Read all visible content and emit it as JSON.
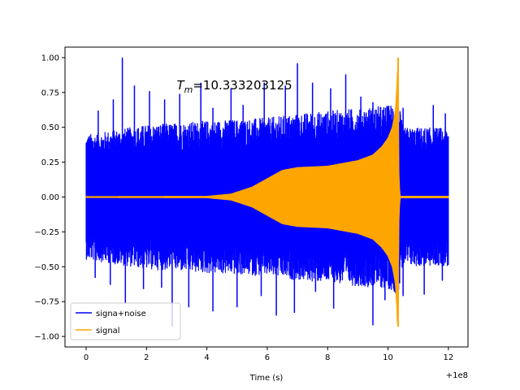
{
  "chart_data": {
    "type": "line",
    "title": "",
    "xlabel": "Time (s)",
    "ylabel": "",
    "x_offset_label": "+1e8",
    "xlim": [
      -0.7,
      12.65
    ],
    "ylim": [
      -1.075,
      1.075
    ],
    "x_ticks": [
      0,
      2,
      4,
      6,
      8,
      10,
      12
    ],
    "x_tick_labels": [
      "0",
      "2",
      "4",
      "6",
      "8",
      "10",
      "12"
    ],
    "y_ticks": [
      1.0,
      0.75,
      0.5,
      0.25,
      0.0,
      -0.25,
      -0.5,
      -0.75,
      -1.0
    ],
    "y_tick_labels": [
      "1.00",
      "0.75",
      "0.50",
      "0.25",
      "0.00",
      "−0.25",
      "−0.50",
      "−0.75",
      "−1.00"
    ],
    "grid": false,
    "legend_position": "lower-left",
    "annotation": {
      "symbol": "T",
      "subscript": "m",
      "value_text": "=10.333203125",
      "x": 3.0,
      "y": 0.8
    },
    "series": [
      {
        "name": "signa+noise",
        "color": "#0000ff",
        "x_range": [
          0,
          12.0
        ],
        "band_upper": [
          [
            0.0,
            0.45
          ],
          [
            2.0,
            0.52
          ],
          [
            4.0,
            0.55
          ],
          [
            5.0,
            0.56
          ],
          [
            6.0,
            0.57
          ],
          [
            7.0,
            0.6
          ],
          [
            8.0,
            0.62
          ],
          [
            9.0,
            0.64
          ],
          [
            10.0,
            0.66
          ],
          [
            10.33,
            0.7
          ],
          [
            10.5,
            0.5
          ],
          [
            11.0,
            0.5
          ],
          [
            12.0,
            0.5
          ]
        ],
        "band_lower": [
          [
            0.0,
            -0.45
          ],
          [
            2.0,
            -0.52
          ],
          [
            4.0,
            -0.55
          ],
          [
            5.0,
            -0.56
          ],
          [
            6.0,
            -0.57
          ],
          [
            7.0,
            -0.6
          ],
          [
            8.0,
            -0.62
          ],
          [
            9.0,
            -0.64
          ],
          [
            10.0,
            -0.66
          ],
          [
            10.33,
            -0.7
          ],
          [
            10.5,
            -0.5
          ],
          [
            11.0,
            -0.5
          ],
          [
            12.0,
            -0.5
          ]
        ],
        "peaks": [
          [
            1.2,
            1.0
          ],
          [
            0.4,
            0.62
          ],
          [
            0.9,
            0.7
          ],
          [
            1.6,
            0.8
          ],
          [
            2.1,
            0.76
          ],
          [
            2.6,
            0.7
          ],
          [
            3.1,
            0.74
          ],
          [
            3.8,
            0.82
          ],
          [
            4.2,
            0.64
          ],
          [
            4.8,
            0.78
          ],
          [
            5.2,
            0.66
          ],
          [
            5.9,
            0.82
          ],
          [
            6.6,
            0.8
          ],
          [
            7.0,
            0.96
          ],
          [
            7.5,
            0.82
          ],
          [
            8.1,
            0.78
          ],
          [
            8.6,
            0.88
          ],
          [
            9.1,
            0.72
          ],
          [
            9.5,
            0.68
          ],
          [
            10.5,
            0.64
          ],
          [
            11.5,
            0.66
          ],
          [
            11.9,
            0.6
          ],
          [
            0.3,
            -0.58
          ],
          [
            0.8,
            -0.63
          ],
          [
            1.3,
            -0.76
          ],
          [
            1.9,
            -0.66
          ],
          [
            2.5,
            -0.65
          ],
          [
            2.85,
            -0.93
          ],
          [
            3.4,
            -0.79
          ],
          [
            4.2,
            -0.82
          ],
          [
            5.0,
            -0.79
          ],
          [
            5.8,
            -0.71
          ],
          [
            6.3,
            -0.85
          ],
          [
            6.9,
            -0.83
          ],
          [
            7.6,
            -0.68
          ],
          [
            8.2,
            -0.8
          ],
          [
            9.5,
            -0.92
          ],
          [
            9.9,
            -0.74
          ],
          [
            10.5,
            -0.71
          ],
          [
            11.2,
            -0.7
          ],
          [
            11.8,
            -0.6
          ]
        ]
      },
      {
        "name": "signal",
        "color": "#ffa500",
        "x_range": [
          0,
          12.0
        ],
        "envelope": [
          [
            0.0,
            0.002
          ],
          [
            4.0,
            0.004
          ],
          [
            4.8,
            0.02
          ],
          [
            5.5,
            0.07
          ],
          [
            6.0,
            0.13
          ],
          [
            6.5,
            0.19
          ],
          [
            7.0,
            0.21
          ],
          [
            8.0,
            0.22
          ],
          [
            9.0,
            0.26
          ],
          [
            9.5,
            0.3
          ],
          [
            9.8,
            0.36
          ],
          [
            10.0,
            0.42
          ],
          [
            10.15,
            0.5
          ],
          [
            10.25,
            0.62
          ],
          [
            10.3,
            0.8
          ],
          [
            10.333,
            1.0
          ],
          [
            10.34,
            0.6
          ],
          [
            10.36,
            0.1
          ],
          [
            10.4,
            0.004
          ],
          [
            12.0,
            0.004
          ]
        ],
        "min_value": -0.93
      }
    ]
  }
}
